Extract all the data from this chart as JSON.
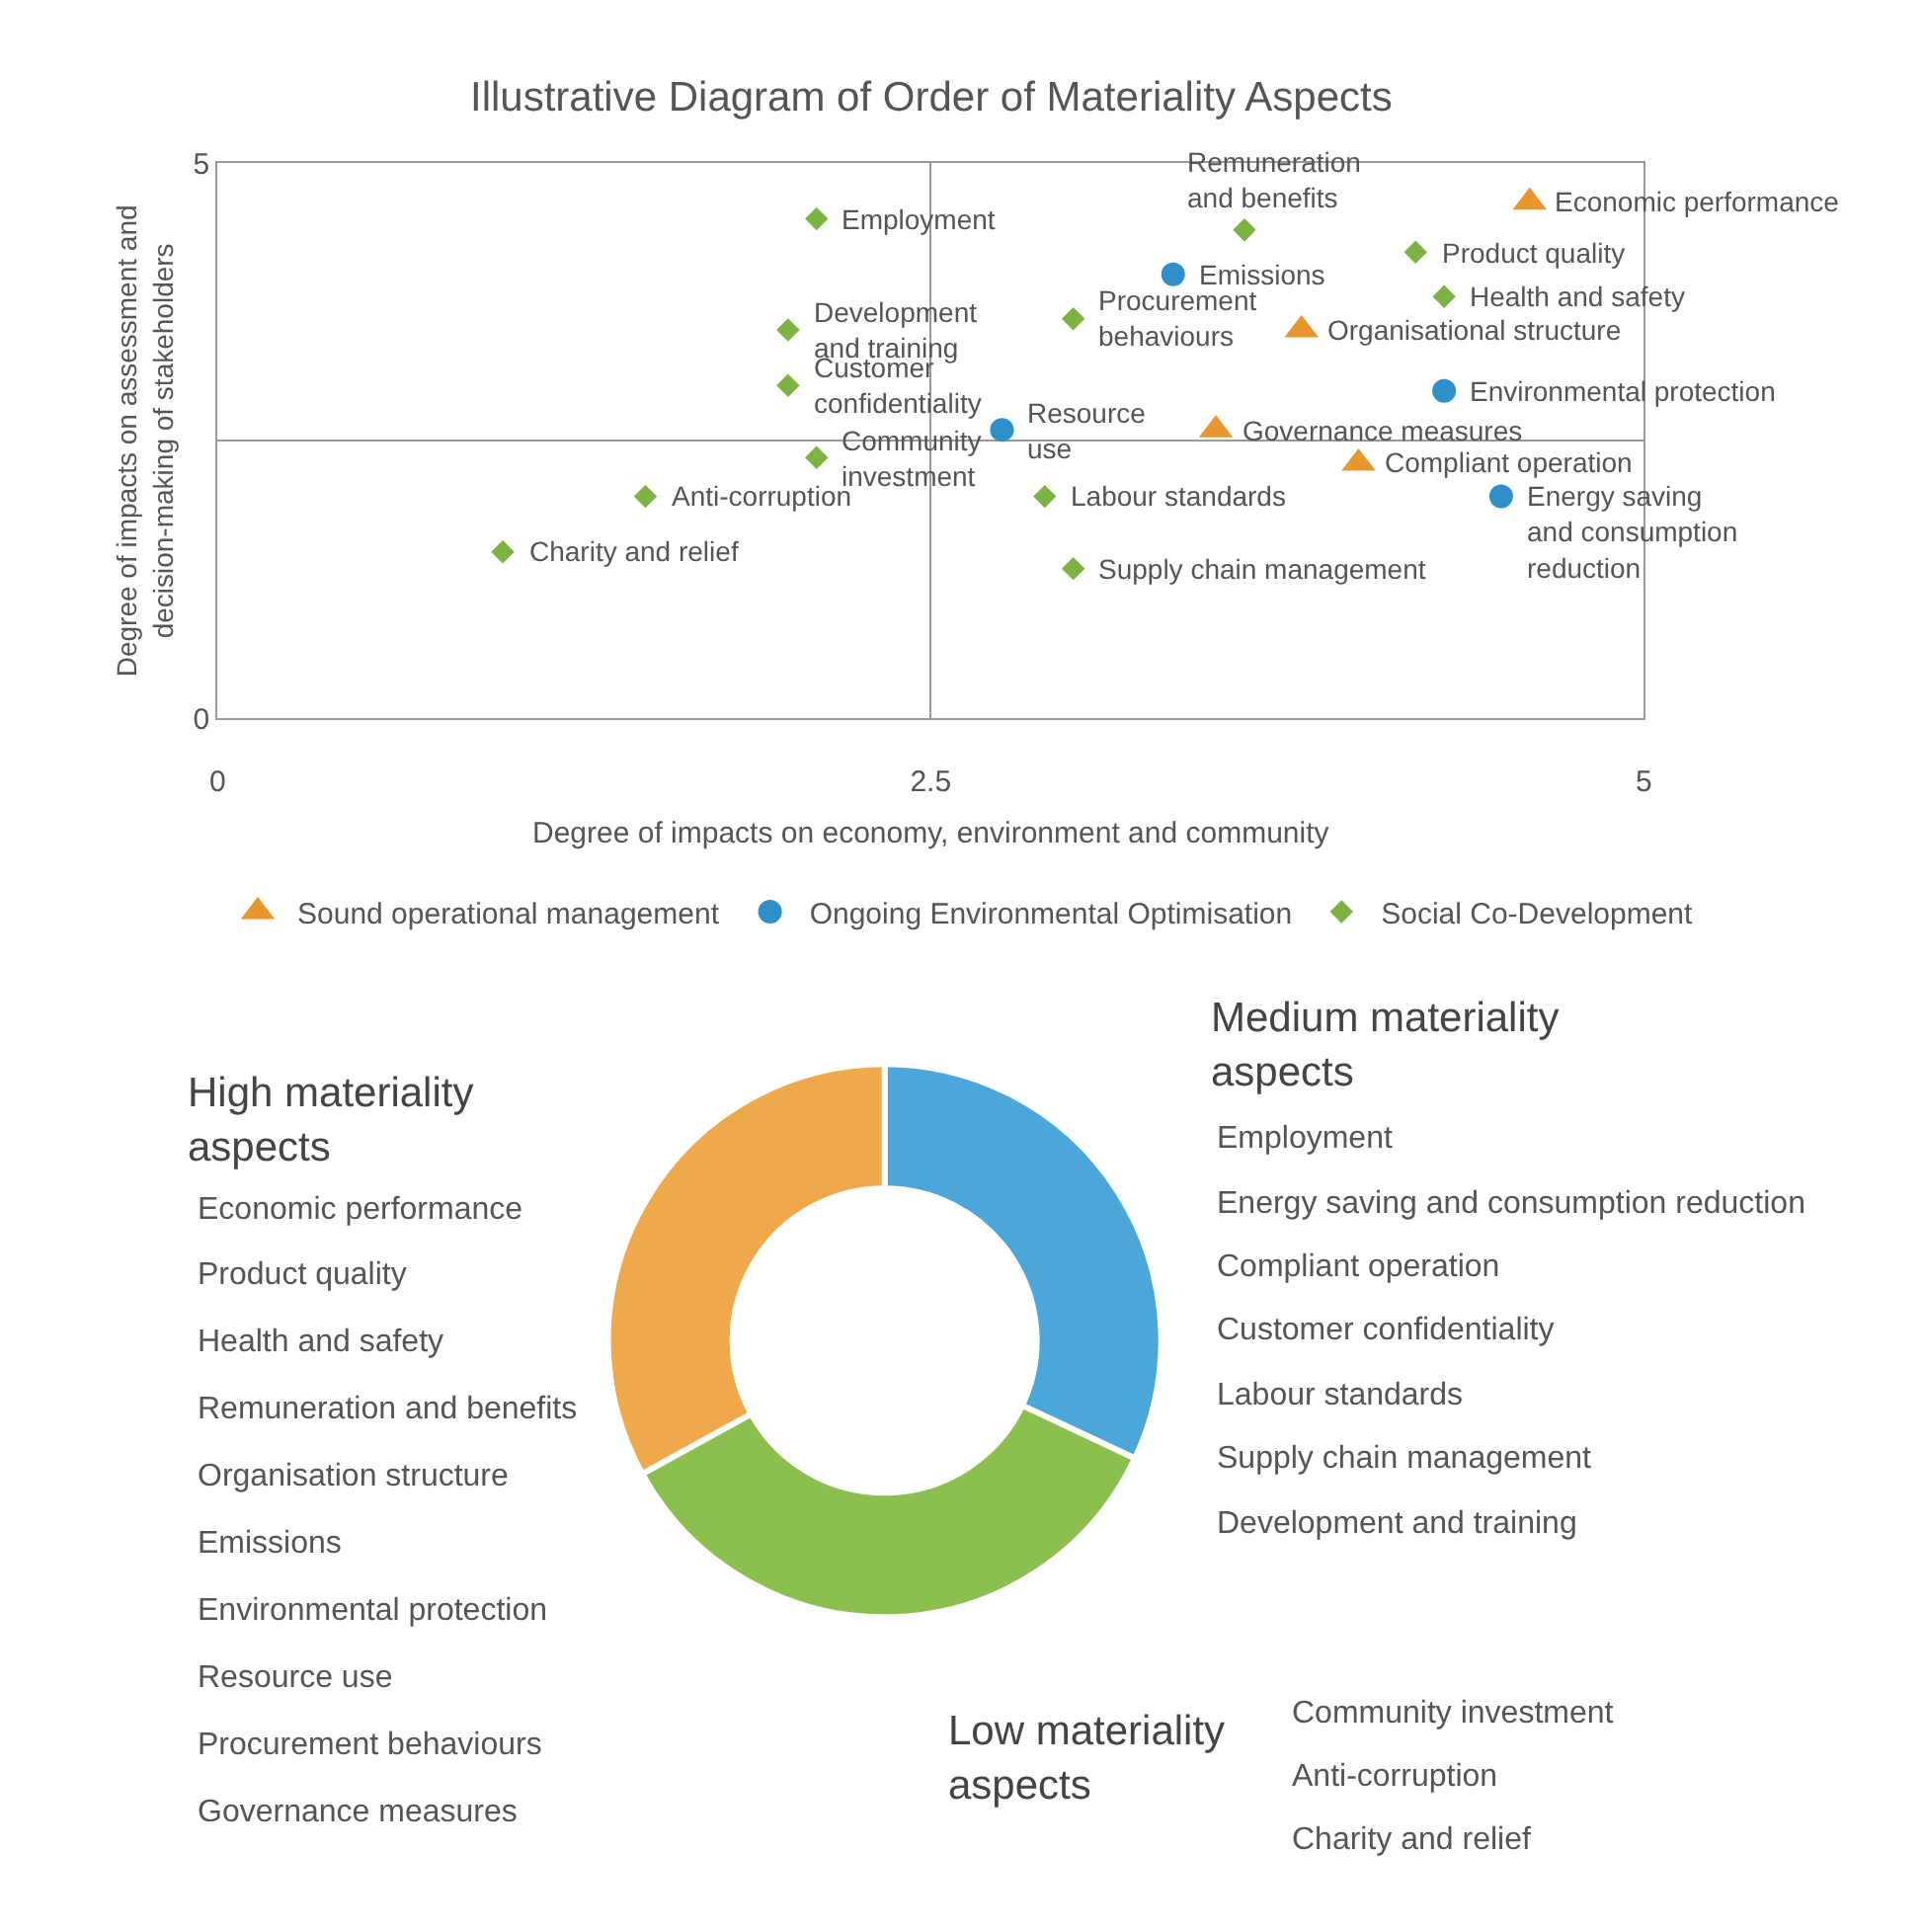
{
  "chart_data": [
    {
      "type": "scatter",
      "title": "Illustrative Diagram of Order of Materiality Aspects",
      "xlabel": "Degree of impacts on economy, environment and community",
      "ylabel": "Degree of impacts on assessment and decision-making of stakeholders",
      "series": [
        {
          "name": "Sound operational management",
          "color": "#e8962e",
          "marker": "triangle",
          "x": [
            4.6,
            3.8,
            3.5,
            4.0
          ],
          "values": [
            4.65,
            3.5,
            2.6,
            2.3
          ]
        },
        {
          "name": "Ongoing Environmental Optimisation",
          "color": "#2e8fc9",
          "marker": "circle",
          "x": [
            3.35,
            4.3,
            2.75,
            4.5
          ],
          "values": [
            4.0,
            2.95,
            2.6,
            2.0
          ]
        },
        {
          "name": "Social Co-Development",
          "color": "#7cb342",
          "marker": "diamond",
          "x": [
            2.1,
            3.6,
            4.2,
            4.3,
            2.0,
            3.0,
            2.0,
            2.1,
            1.5,
            2.9,
            3.0,
            1.0
          ],
          "values": [
            4.5,
            4.4,
            4.2,
            3.8,
            3.5,
            3.6,
            3.0,
            2.35,
            2.0,
            2.0,
            1.35,
            1.5
          ]
        }
      ],
      "annotations": [
        {
          "text": "Economic performance",
          "x": 4.6,
          "y": 4.65
        },
        {
          "text": "Organisational structure",
          "x": 3.8,
          "y": 3.5
        },
        {
          "text": "Governance measures",
          "x": 3.5,
          "y": 2.6
        },
        {
          "text": "Compliant operation",
          "x": 4.0,
          "y": 2.3
        },
        {
          "text": "Emissions",
          "x": 3.35,
          "y": 4.0
        },
        {
          "text": "Environmental protection",
          "x": 4.3,
          "y": 2.95
        },
        {
          "text": "Resource\nuse",
          "x": 2.75,
          "y": 2.6
        },
        {
          "text": "Energy saving\nand consumption\nreduction",
          "x": 4.5,
          "y": 2.0
        },
        {
          "text": "Employment",
          "x": 2.1,
          "y": 4.5
        },
        {
          "text": "Remuneration\nand benefits",
          "x": 3.6,
          "y": 4.4
        },
        {
          "text": "Product quality",
          "x": 4.2,
          "y": 4.2
        },
        {
          "text": "Health and safety",
          "x": 4.3,
          "y": 3.8
        },
        {
          "text": "Development\nand training",
          "x": 2.0,
          "y": 3.5
        },
        {
          "text": "Procurement\nbehaviours",
          "x": 3.0,
          "y": 3.6
        },
        {
          "text": "Customer\nconfidentiality",
          "x": 2.0,
          "y": 3.0
        },
        {
          "text": "Community\ninvestment",
          "x": 2.1,
          "y": 2.35
        },
        {
          "text": "Anti-corruption",
          "x": 1.5,
          "y": 2.0
        },
        {
          "text": "Labour standards",
          "x": 2.9,
          "y": 2.0
        },
        {
          "text": "Supply chain management",
          "x": 3.0,
          "y": 1.35
        },
        {
          "text": "Charity and relief",
          "x": 1.0,
          "y": 1.5
        }
      ],
      "xlim": [
        0,
        5
      ],
      "ylim": [
        0,
        5
      ],
      "xticks": [
        0,
        2.5,
        5
      ],
      "yticks": [
        0,
        {
          "value": 2.5,
          "label": null
        },
        5
      ],
      "grid": true,
      "legend": "bottom"
    },
    {
      "type": "donut",
      "categories": [
        "Medium materiality aspects",
        "Low materiality aspects",
        "High materiality aspects"
      ],
      "values": [
        32,
        35,
        33
      ],
      "colors": [
        "#4ba6d9",
        "#8cc04e",
        "#efa94a"
      ],
      "annotations": [
        "Employment\nEnergy saving and consumption reduction\nCompliant operation\nCustomer confidentiality\nLabour standards\nSupply chain management\nDevelopment and training",
        "Community investment\nAnti-corruption\nCharity and relief",
        "Economic performance\nProduct quality\nHealth and safety\nRemuneration and benefits\nOrganisation structure\nEmissions\nEnvironmental protection\nResource use\nProcurement behaviours\nGovernance measures"
      ]
    }
  ]
}
